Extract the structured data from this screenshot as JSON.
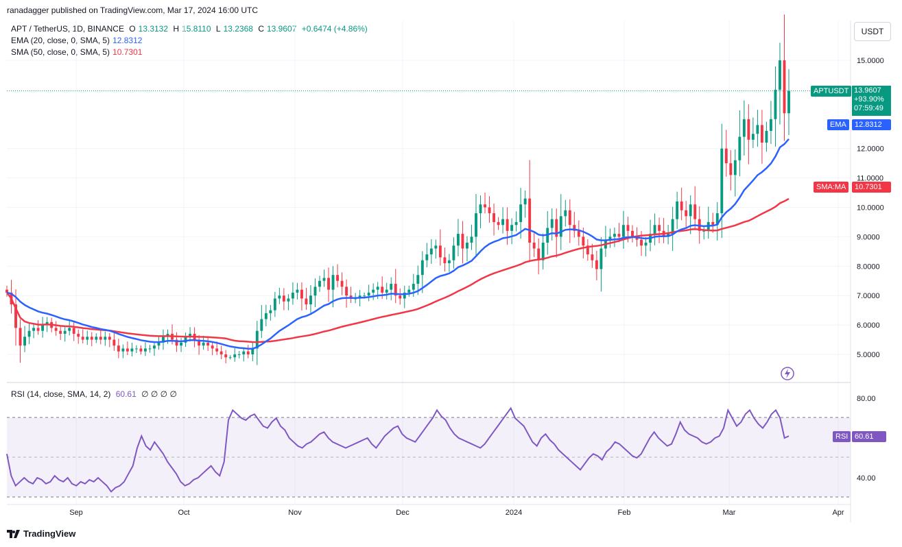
{
  "header": {
    "published": "ranadagger published on TradingView.com, Mar 17, 2024 16:00 UTC"
  },
  "legend": {
    "symbol": "APT / TetherUS, 1D, BINANCE",
    "open_label": "O",
    "open": "13.3132",
    "high_label": "H",
    "high": "15.8110",
    "low_label": "L",
    "low": "13.2368",
    "close_label": "C",
    "close": "13.9607",
    "change": "+0.6474 (+4.86%)",
    "ema_label": "EMA (20, close, 0, SMA, 5)",
    "ema_value": "12.8312",
    "sma_label": "SMA (50, close, 0, SMA, 5)",
    "sma_value": "10.7301"
  },
  "currency_button": "USDT",
  "price_tag": {
    "label": "APTUSDT",
    "price": "13.9607",
    "change": "+93.90%",
    "countdown": "07:59:49"
  },
  "ema_tag": {
    "label": "EMA",
    "value": "12.8312"
  },
  "sma_tag": {
    "label": "SMA:MA",
    "value": "10.7301"
  },
  "rsi": {
    "legend": "RSI (14, close, SMA, 14, 2)",
    "value": "60.61",
    "extras": "∅ ∅ ∅ ∅",
    "tag_label": "RSI",
    "tag_value": "60.61"
  },
  "branding": "TradingView",
  "colors": {
    "up": "#089981",
    "down": "#f23645",
    "ema": "#2962ff",
    "sma": "#f23645",
    "rsi": "#7e57c2",
    "rsi_band": "#7e57c2"
  },
  "chart_data": [
    {
      "type": "candlestick",
      "title": "APT / TetherUS, 1D, BINANCE",
      "ylim": [
        4.4,
        16.1
      ],
      "y_ticks": [
        "5.0000",
        "6.0000",
        "7.0000",
        "8.0000",
        "9.0000",
        "10.0000",
        "11.0000",
        "12.0000",
        "15.0000"
      ],
      "x_ticks": [
        "Sep",
        "Oct",
        "Nov",
        "Dec",
        "2024",
        "Feb",
        "Mar",
        "Apr"
      ],
      "x_start": "2023-08-24",
      "close_series": [
        7.1,
        6.7,
        5.9,
        5.3,
        5.6,
        5.8,
        5.9,
        5.8,
        6.0,
        6.1,
        5.9,
        5.8,
        5.7,
        5.8,
        5.9,
        5.7,
        5.6,
        5.5,
        5.6,
        5.5,
        5.6,
        5.5,
        5.6,
        5.5,
        5.3,
        5.1,
        5.2,
        5.1,
        5.2,
        5.2,
        5.1,
        5.2,
        5.2,
        5.3,
        5.4,
        5.6,
        5.7,
        5.5,
        5.3,
        5.4,
        5.6,
        5.7,
        5.5,
        5.3,
        5.4,
        5.3,
        5.2,
        5.1,
        5.0,
        4.9,
        4.9,
        5.0,
        5.0,
        5.1,
        5.0,
        5.2,
        5.8,
        6.2,
        6.4,
        6.5,
        6.9,
        7.0,
        6.8,
        6.9,
        7.1,
        7.2,
        6.9,
        6.7,
        7.0,
        7.3,
        7.5,
        7.6,
        7.2,
        7.7,
        7.5,
        7.3,
        7.0,
        6.9,
        6.9,
        7.0,
        7.0,
        7.1,
        7.2,
        7.3,
        7.1,
        7.2,
        7.4,
        7.0,
        6.9,
        7.1,
        7.2,
        7.4,
        7.7,
        8.2,
        8.4,
        8.6,
        8.7,
        8.3,
        8.1,
        8.2,
        8.7,
        9.1,
        8.6,
        8.8,
        9.0,
        9.8,
        10.1,
        10.0,
        9.8,
        9.5,
        9.4,
        9.6,
        9.2,
        9.4,
        9.5,
        10.1,
        10.3,
        8.8,
        8.6,
        8.2,
        8.8,
        9.3,
        9.6,
        9.0,
        9.7,
        9.9,
        9.4,
        9.2,
        9.0,
        8.7,
        8.4,
        8.2,
        7.9,
        8.6,
        8.9,
        9.0,
        9.1,
        9.0,
        9.4,
        9.2,
        9.0,
        8.9,
        8.7,
        8.8,
        9.1,
        9.4,
        9.2,
        9.0,
        9.1,
        9.6,
        10.2,
        9.9,
        9.7,
        10.1,
        9.6,
        9.2,
        9.2,
        9.5,
        9.4,
        9.8,
        12.0,
        11.5,
        11.1,
        11.6,
        12.4,
        13.0,
        12.3,
        12.5,
        12.8,
        12.2,
        12.6,
        13.0,
        14.0,
        15.0,
        13.2,
        13.96
      ],
      "series": [
        {
          "name": "EMA (20, close, 0, SMA, 5)",
          "last": 12.8312
        },
        {
          "name": "SMA (50, close, 0, SMA, 5)",
          "last": 10.7301
        }
      ],
      "last_close": 13.9607
    },
    {
      "type": "line",
      "title": "RSI (14, close, SMA, 14, 2)",
      "ylim": [
        27,
        88
      ],
      "y_ticks": [
        "40.00",
        "80.00"
      ],
      "bands": [
        70,
        30
      ],
      "series": [
        {
          "name": "RSI",
          "values": [
            52,
            41,
            36,
            38,
            40,
            38,
            37,
            40,
            39,
            37,
            38,
            41,
            39,
            38,
            40,
            37,
            36,
            38,
            37,
            39,
            38,
            40,
            38,
            36,
            33,
            35,
            36,
            38,
            42,
            46,
            55,
            61,
            56,
            54,
            58,
            55,
            52,
            48,
            45,
            42,
            38,
            36,
            37,
            39,
            40,
            42,
            44,
            46,
            43,
            41,
            48,
            69,
            74,
            72,
            70,
            69,
            71,
            72,
            69,
            66,
            65,
            68,
            70,
            66,
            64,
            60,
            58,
            56,
            55,
            57,
            58,
            60,
            62,
            63,
            60,
            58,
            57,
            56,
            55,
            56,
            57,
            58,
            59,
            60,
            57,
            55,
            58,
            61,
            63,
            65,
            66,
            62,
            60,
            59,
            58,
            61,
            64,
            67,
            70,
            74,
            71,
            69,
            65,
            62,
            60,
            59,
            58,
            57,
            56,
            55,
            57,
            60,
            63,
            66,
            69,
            72,
            75,
            70,
            68,
            66,
            62,
            58,
            56,
            60,
            62,
            59,
            57,
            54,
            52,
            50,
            48,
            46,
            44,
            47,
            50,
            52,
            51,
            49,
            53,
            55,
            58,
            57,
            55,
            53,
            51,
            50,
            52,
            56,
            60,
            63,
            60,
            58,
            56,
            57,
            62,
            68,
            64,
            62,
            61,
            60,
            58,
            57,
            58,
            60,
            61,
            65,
            74,
            70,
            66,
            68,
            72,
            74,
            70,
            67,
            65,
            68,
            72,
            74,
            70,
            60,
            61
          ]
        }
      ],
      "last_value": 60.61
    }
  ]
}
